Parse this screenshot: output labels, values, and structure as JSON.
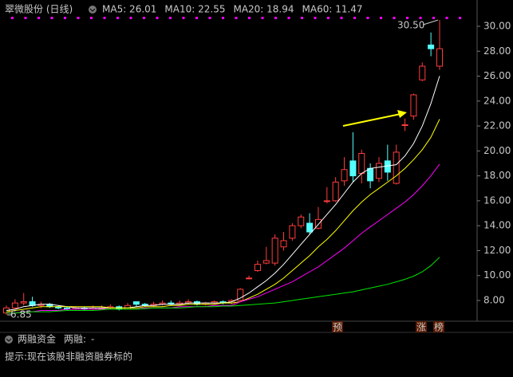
{
  "chart_data": {
    "type": "candlestick",
    "title": "翠微股份 (日线)",
    "open": [
      7.0,
      7.4,
      7.8,
      7.9,
      7.6,
      7.7,
      7.5,
      7.4,
      7.3,
      7.4,
      7.3,
      7.4,
      7.4,
      7.5,
      7.3,
      7.9,
      7.7,
      7.6,
      7.7,
      7.8,
      7.7,
      7.8,
      7.9,
      7.7,
      7.8,
      7.9,
      7.8,
      8.0,
      9.8,
      10.4,
      11.0,
      11.0,
      12.3,
      13.0,
      14.0,
      14.2,
      13.8,
      16.0,
      16.0,
      17.6,
      19.2,
      18.2,
      18.6,
      17.8,
      19.2,
      17.4,
      22.1,
      22.8,
      25.7,
      28.5,
      26.8
    ],
    "high": [
      7.6,
      8.1,
      8.6,
      8.3,
      7.9,
      7.8,
      7.6,
      7.5,
      7.5,
      7.5,
      7.6,
      7.6,
      7.7,
      7.6,
      7.8,
      7.9,
      7.8,
      7.9,
      8.0,
      8.0,
      8.0,
      8.1,
      8.0,
      7.9,
      8.0,
      8.0,
      8.1,
      9.0,
      10.0,
      11.2,
      12.3,
      13.3,
      13.5,
      14.2,
      14.9,
      15.0,
      15.5,
      17.1,
      17.9,
      19.5,
      21.5,
      20.1,
      19.0,
      19.5,
      20.5,
      20.5,
      22.6,
      24.6,
      27.1,
      29.5,
      30.5
    ],
    "low": [
      6.85,
      7.3,
      7.6,
      7.5,
      7.4,
      7.4,
      7.3,
      7.2,
      7.2,
      7.2,
      7.2,
      7.3,
      7.3,
      7.2,
      7.3,
      7.5,
      7.5,
      7.5,
      7.6,
      7.6,
      7.6,
      7.7,
      7.6,
      7.6,
      7.7,
      7.7,
      7.7,
      7.9,
      9.7,
      10.3,
      10.9,
      10.8,
      12.0,
      12.8,
      13.8,
      13.3,
      13.7,
      15.8,
      15.9,
      17.2,
      17.5,
      17.4,
      17.0,
      17.5,
      17.6,
      17.3,
      21.6,
      22.5,
      25.6,
      27.6,
      26.5
    ],
    "close": [
      7.4,
      7.8,
      7.9,
      7.6,
      7.7,
      7.5,
      7.4,
      7.3,
      7.4,
      7.3,
      7.4,
      7.4,
      7.5,
      7.3,
      7.6,
      7.7,
      7.6,
      7.7,
      7.8,
      7.7,
      7.8,
      7.9,
      7.7,
      7.8,
      7.9,
      7.8,
      8.0,
      8.9,
      9.8,
      10.9,
      11.2,
      13.0,
      12.8,
      14.0,
      14.7,
      13.5,
      14.5,
      16.0,
      17.5,
      18.5,
      18.0,
      19.8,
      17.6,
      19.0,
      18.3,
      19.9,
      22.1,
      24.5,
      26.8,
      28.2,
      28.2
    ],
    "up_color": "#ff3c3c",
    "down_color": "#54ffff",
    "series": [
      {
        "name": "MA5: 26.01",
        "color": "#ffffff",
        "values": [
          7.2,
          7.3,
          7.5,
          7.6,
          7.7,
          7.7,
          7.6,
          7.5,
          7.4,
          7.4,
          7.4,
          7.4,
          7.4,
          7.4,
          7.4,
          7.5,
          7.6,
          7.6,
          7.7,
          7.7,
          7.7,
          7.8,
          7.8,
          7.8,
          7.8,
          7.8,
          7.9,
          8.2,
          8.6,
          9.1,
          9.6,
          10.2,
          10.9,
          11.7,
          12.5,
          13.3,
          14.1,
          14.9,
          15.7,
          16.6,
          17.5,
          18.2,
          18.6,
          18.7,
          18.8,
          18.9,
          19.6,
          20.6,
          22.0,
          23.8,
          26.01
        ]
      },
      {
        "name": "MA10: 22.55",
        "color": "#ffff00",
        "values": [
          7.1,
          7.2,
          7.3,
          7.4,
          7.5,
          7.5,
          7.5,
          7.5,
          7.5,
          7.5,
          7.5,
          7.5,
          7.4,
          7.4,
          7.4,
          7.4,
          7.5,
          7.5,
          7.5,
          7.6,
          7.6,
          7.7,
          7.7,
          7.7,
          7.7,
          7.8,
          7.8,
          7.9,
          8.2,
          8.5,
          8.9,
          9.3,
          9.8,
          10.4,
          11.0,
          11.6,
          12.3,
          12.9,
          13.6,
          14.4,
          15.2,
          15.9,
          16.5,
          17.0,
          17.5,
          18.0,
          18.6,
          19.3,
          20.1,
          21.1,
          22.55
        ]
      },
      {
        "name": "MA20: 18.94",
        "color": "#ff00ff",
        "values": [
          7.0,
          7.0,
          7.1,
          7.1,
          7.2,
          7.2,
          7.2,
          7.3,
          7.3,
          7.3,
          7.3,
          7.3,
          7.3,
          7.3,
          7.3,
          7.3,
          7.4,
          7.4,
          7.4,
          7.4,
          7.5,
          7.5,
          7.5,
          7.5,
          7.6,
          7.6,
          7.6,
          7.9,
          8.1,
          8.3,
          8.6,
          8.9,
          9.2,
          9.5,
          9.9,
          10.3,
          10.7,
          11.2,
          11.7,
          12.2,
          12.8,
          13.4,
          13.9,
          14.4,
          14.9,
          15.4,
          15.9,
          16.5,
          17.2,
          18.0,
          18.94
        ]
      },
      {
        "name": "MA60: 11.47",
        "color": "#00e600",
        "values": [
          7.0,
          7.0,
          7.05,
          7.1,
          7.1,
          7.1,
          7.15,
          7.2,
          7.2,
          7.2,
          7.2,
          7.25,
          7.3,
          7.3,
          7.3,
          7.3,
          7.35,
          7.4,
          7.4,
          7.4,
          7.4,
          7.45,
          7.5,
          7.5,
          7.5,
          7.55,
          7.55,
          7.6,
          7.65,
          7.7,
          7.75,
          7.8,
          7.9,
          8.0,
          8.1,
          8.2,
          8.3,
          8.4,
          8.5,
          8.6,
          8.7,
          8.85,
          9.0,
          9.15,
          9.3,
          9.5,
          9.7,
          9.95,
          10.3,
          10.8,
          11.47
        ]
      }
    ],
    "ylim": [
      6.53,
      30.83
    ],
    "yticks": [
      {
        "value": 8,
        "label": "8.00"
      },
      {
        "value": 10,
        "label": "10.00"
      },
      {
        "value": 12,
        "label": "12.00"
      },
      {
        "value": 14,
        "label": "14.00"
      },
      {
        "value": 16,
        "label": "16.00"
      },
      {
        "value": 18,
        "label": "18.00"
      },
      {
        "value": 20,
        "label": "20.00"
      },
      {
        "value": 22,
        "label": "22.00"
      },
      {
        "value": 24,
        "label": "24.00"
      },
      {
        "value": 26,
        "label": "26.00"
      },
      {
        "value": 28,
        "label": "28.00"
      },
      {
        "value": 30,
        "label": "30.00"
      }
    ],
    "grid": false,
    "high_label": "30.50",
    "low_label": "6.85",
    "markers": [
      "预",
      "涨",
      "榜"
    ]
  },
  "bottom_panel": {
    "title": "两融资金",
    "margin_label": "两融:",
    "margin_value": "-",
    "hint": "提示:现在该股非融资融券标的"
  }
}
